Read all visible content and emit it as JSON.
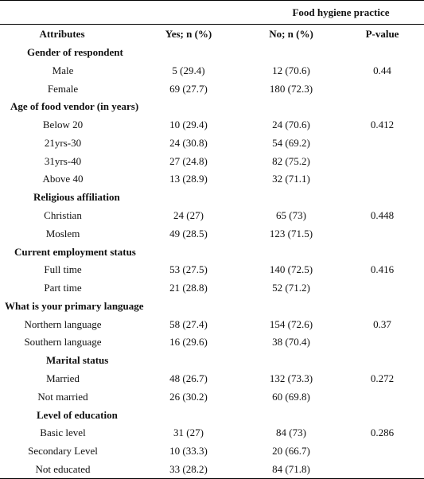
{
  "table": {
    "super_header": "Food hygiene practice",
    "headers": [
      "Attributes",
      "Yes; n (%)",
      "No; n (%)",
      "P-value"
    ],
    "sections": [
      {
        "title": "Gender of respondent",
        "rows": [
          {
            "label": "Male",
            "yes": "5 (29.4)",
            "no": "12 (70.6)",
            "p": "0.44"
          },
          {
            "label": "Female",
            "yes": "69 (27.7)",
            "no": "180 (72.3)",
            "p": ""
          }
        ]
      },
      {
        "title": "Age of food vendor (in years)",
        "rows": [
          {
            "label": "Below 20",
            "yes": "10 (29.4)",
            "no": "24 (70.6)",
            "p": "0.412"
          },
          {
            "label": "21yrs-30",
            "yes": "24 (30.8)",
            "no": "54 (69.2)",
            "p": ""
          },
          {
            "label": "31yrs-40",
            "yes": "27 (24.8)",
            "no": "82 (75.2)",
            "p": ""
          },
          {
            "label": "Above 40",
            "yes": "13 (28.9)",
            "no": "32 (71.1)",
            "p": ""
          }
        ]
      },
      {
        "title": "Religious affiliation",
        "rows": [
          {
            "label": "Christian",
            "yes": "24 (27)",
            "no": "65 (73)",
            "p": "0.448"
          },
          {
            "label": "Moslem",
            "yes": "49 (28.5)",
            "no": "123 (71.5)",
            "p": ""
          }
        ]
      },
      {
        "title": "Current employment status",
        "rows": [
          {
            "label": "Full time",
            "yes": "53 (27.5)",
            "no": "140 (72.5)",
            "p": "0.416"
          },
          {
            "label": "Part time",
            "yes": "21 (28.8)",
            "no": "52 (71.2)",
            "p": ""
          }
        ]
      },
      {
        "title": "What is your primary language",
        "rows": [
          {
            "label": "Northern language",
            "yes": "58 (27.4)",
            "no": "154 (72.6)",
            "p": "0.37"
          },
          {
            "label": "Southern language",
            "yes": "16 (29.6)",
            "no": "38 (70.4)",
            "p": ""
          }
        ]
      },
      {
        "title": "Marital status",
        "rows": [
          {
            "label": "Married",
            "yes": "48 (26.7)",
            "no": "132 (73.3)",
            "p": "0.272"
          },
          {
            "label": "Not married",
            "yes": "26 (30.2)",
            "no": "60 (69.8)",
            "p": ""
          }
        ]
      },
      {
        "title": "Level of education",
        "rows": [
          {
            "label": "Basic level",
            "yes": "31 (27)",
            "no": "84 (73)",
            "p": "0.286"
          },
          {
            "label": "Secondary Level",
            "yes": "10 (33.3)",
            "no": "20 (66.7)",
            "p": ""
          },
          {
            "label": "Not educated",
            "yes": "33 (28.2)",
            "no": "84 (71.8)",
            "p": ""
          }
        ]
      }
    ]
  }
}
